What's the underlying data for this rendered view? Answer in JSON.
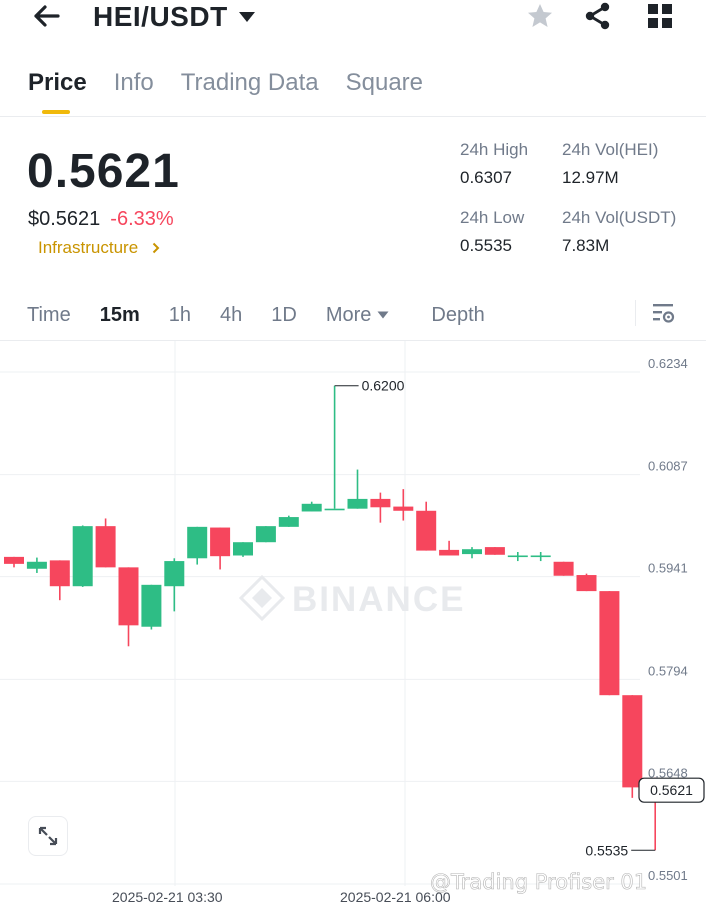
{
  "header": {
    "pair": "HEI/USDT",
    "icons": [
      "back-arrow-icon",
      "caret-down-icon",
      "star-icon",
      "share-icon",
      "grid-icon"
    ]
  },
  "tabs": [
    {
      "label": "Price",
      "active": true
    },
    {
      "label": "Info",
      "active": false
    },
    {
      "label": "Trading Data",
      "active": false
    },
    {
      "label": "Square",
      "active": false
    }
  ],
  "ticker": {
    "last_price": "0.5621",
    "fiat_price": "$0.5621",
    "change_pct": "-6.33%",
    "category": "Infrastructure"
  },
  "stats": {
    "high_label": "24h High",
    "high_value": "0.6307",
    "low_label": "24h Low",
    "low_value": "0.5535",
    "vol_base_label": "24h Vol(HEI)",
    "vol_base_value": "12.97M",
    "vol_quote_label": "24h Vol(USDT)",
    "vol_quote_value": "7.83M"
  },
  "intervals": {
    "time": "Time",
    "m15": "15m",
    "h1": "1h",
    "h4": "4h",
    "d1": "1D",
    "more": "More",
    "depth": "Depth",
    "active": "15m"
  },
  "chart_data": {
    "type": "candlestick",
    "y_ticks": [
      "0.6234",
      "0.6087",
      "0.5941",
      "0.5794",
      "0.5648",
      "0.5501"
    ],
    "ylim": [
      0.5501,
      0.6234
    ],
    "x_ticks": [
      "2025-02-21 03:30",
      "2025-02-21 06:00"
    ],
    "candles": [
      {
        "o": 0.5955,
        "h": 0.5955,
        "c": 0.5945,
        "l": 0.594
      },
      {
        "o": 0.5938,
        "h": 0.5954,
        "c": 0.5948,
        "l": 0.5932
      },
      {
        "o": 0.595,
        "h": 0.595,
        "c": 0.5913,
        "l": 0.5893
      },
      {
        "o": 0.5913,
        "h": 0.6,
        "c": 0.5999,
        "l": 0.5912
      },
      {
        "o": 0.5999,
        "h": 0.601,
        "c": 0.594,
        "l": 0.594
      },
      {
        "o": 0.594,
        "h": 0.594,
        "c": 0.5857,
        "l": 0.5827
      },
      {
        "o": 0.5855,
        "h": 0.5915,
        "c": 0.5915,
        "l": 0.5851
      },
      {
        "o": 0.5913,
        "h": 0.5953,
        "c": 0.5949,
        "l": 0.5877
      },
      {
        "o": 0.5953,
        "h": 0.5998,
        "c": 0.5998,
        "l": 0.5944
      },
      {
        "o": 0.5997,
        "h": 0.5997,
        "c": 0.5956,
        "l": 0.5937
      },
      {
        "o": 0.5957,
        "h": 0.5976,
        "c": 0.5976,
        "l": 0.5955
      },
      {
        "o": 0.5976,
        "h": 0.5999,
        "c": 0.5999,
        "l": 0.5976
      },
      {
        "o": 0.5998,
        "h": 0.6014,
        "c": 0.6012,
        "l": 0.5998
      },
      {
        "o": 0.602,
        "h": 0.6034,
        "c": 0.6031,
        "l": 0.602
      },
      {
        "o": 0.6024,
        "h": 0.62,
        "c": 0.6024,
        "l": 0.6024
      },
      {
        "o": 0.6024,
        "h": 0.608,
        "c": 0.6038,
        "l": 0.6024
      },
      {
        "o": 0.6038,
        "h": 0.6047,
        "c": 0.6026,
        "l": 0.6004
      },
      {
        "o": 0.6027,
        "h": 0.6052,
        "c": 0.6021,
        "l": 0.6007
      },
      {
        "o": 0.6021,
        "h": 0.6034,
        "c": 0.5964,
        "l": 0.5964
      },
      {
        "o": 0.5965,
        "h": 0.5978,
        "c": 0.5957,
        "l": 0.5957
      },
      {
        "o": 0.5959,
        "h": 0.5969,
        "c": 0.5966,
        "l": 0.5953
      },
      {
        "o": 0.5969,
        "h": 0.5969,
        "c": 0.5958,
        "l": 0.5958
      },
      {
        "o": 0.5956,
        "h": 0.5962,
        "c": 0.5957,
        "l": 0.5949
      },
      {
        "o": 0.5956,
        "h": 0.5962,
        "c": 0.5957,
        "l": 0.5949
      },
      {
        "o": 0.5948,
        "h": 0.5948,
        "c": 0.5928,
        "l": 0.5928
      },
      {
        "o": 0.5929,
        "h": 0.5931,
        "c": 0.5906,
        "l": 0.5906
      },
      {
        "o": 0.5906,
        "h": 0.5906,
        "c": 0.5757,
        "l": 0.5757
      },
      {
        "o": 0.5757,
        "h": 0.5757,
        "c": 0.5625,
        "l": 0.561
      },
      {
        "o": 0.5625,
        "h": 0.5639,
        "c": 0.5621,
        "l": 0.5535
      }
    ],
    "high_marker": "0.6200",
    "low_marker": "0.5535",
    "current_price_label": "0.5621",
    "colors": {
      "up": "#2ebd85",
      "down": "#f6465d"
    },
    "watermark": "BINANCE",
    "credit": "@Trading Profiser 01"
  }
}
